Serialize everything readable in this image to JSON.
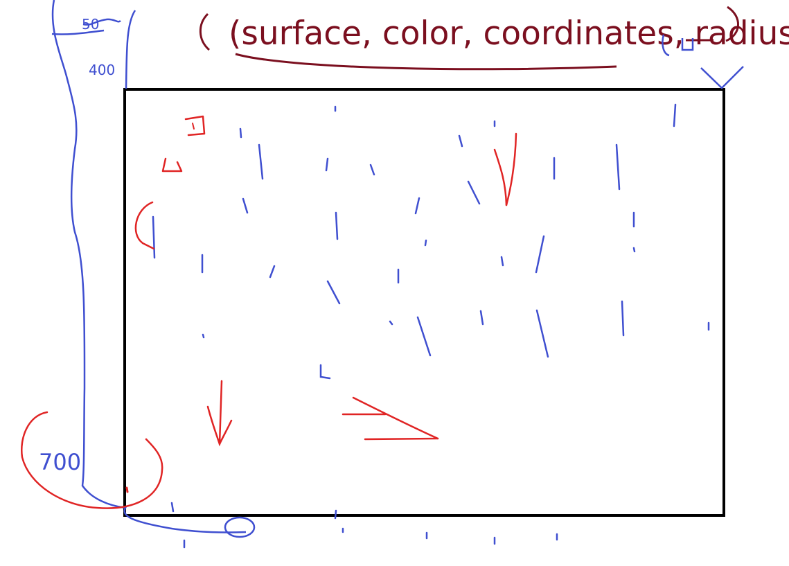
{
  "header": {
    "text": "(surface, color, coordinates, radius)",
    "color": "#7b0f1f"
  },
  "annotations": {
    "top_left_value_1": "50",
    "top_left_value_2": "400",
    "bottom_left_value": "700"
  },
  "colors": {
    "frame": "#000000",
    "blue_ink": "#3f4fd0",
    "red_ink": "#e02424",
    "dark_red_ink": "#7b0f1f"
  },
  "icons": {
    "down_arrow_top": "down-arrow-icon",
    "down_arrow_bottom": "down-arrow-icon",
    "right_arrow": "right-arrow-icon"
  }
}
